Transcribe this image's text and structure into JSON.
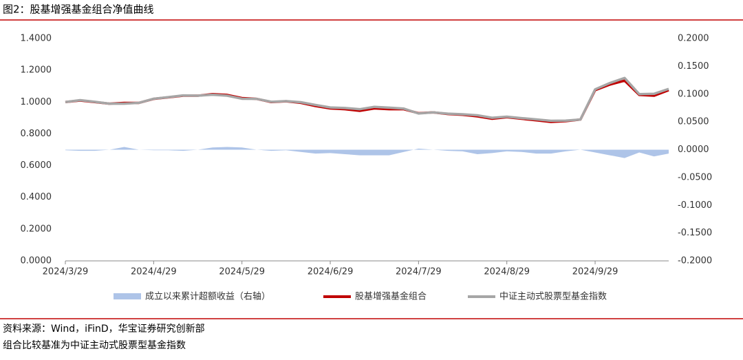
{
  "chart_data": {
    "type": "line",
    "title": "图2：股基增强基金组合净值曲线",
    "categories": [
      "2024/3/29",
      null,
      null,
      null,
      null,
      null,
      "2024/4/29",
      null,
      null,
      null,
      null,
      null,
      "2024/5/29",
      null,
      null,
      null,
      null,
      null,
      "2024/6/29",
      null,
      null,
      null,
      null,
      null,
      "2024/7/29",
      null,
      null,
      null,
      null,
      null,
      "2024/8/29",
      null,
      null,
      null,
      null,
      null,
      "2024/9/29",
      null,
      null,
      null,
      null,
      null
    ],
    "series": [
      {
        "name": "成立以来累计超额收益（右轴）",
        "type": "area",
        "axis": "y2",
        "color": "#aec4e8",
        "values": [
          -0.001,
          -0.002,
          -0.002,
          0.0,
          0.005,
          0.0,
          -0.001,
          -0.001,
          -0.002,
          0.0,
          0.004,
          0.005,
          0.004,
          0.0,
          -0.002,
          -0.001,
          -0.004,
          -0.007,
          -0.006,
          -0.008,
          -0.01,
          -0.01,
          -0.01,
          -0.004,
          0.002,
          0.0,
          -0.002,
          -0.003,
          -0.008,
          -0.006,
          -0.003,
          -0.004,
          -0.007,
          -0.007,
          -0.003,
          0.0,
          -0.005,
          -0.01,
          -0.015,
          -0.005,
          -0.012,
          -0.007
        ]
      },
      {
        "name": "股基增强基金组合",
        "type": "line",
        "color": "#c00000",
        "values": [
          1.0,
          1.01,
          1.0,
          0.99,
          0.995,
          0.995,
          1.02,
          1.03,
          1.04,
          1.04,
          1.05,
          1.045,
          1.025,
          1.02,
          1.0,
          1.005,
          0.995,
          0.975,
          0.96,
          0.955,
          0.945,
          0.96,
          0.955,
          0.955,
          0.93,
          0.935,
          0.925,
          0.92,
          0.91,
          0.895,
          0.905,
          0.895,
          0.885,
          0.875,
          0.88,
          0.89,
          1.075,
          1.11,
          1.135,
          1.045,
          1.04,
          1.075
        ]
      },
      {
        "name": "中证主动式股票型基金指数",
        "type": "line",
        "color": "#a6a6a6",
        "values": [
          1.0,
          1.012,
          1.002,
          0.99,
          0.99,
          0.995,
          1.021,
          1.031,
          1.042,
          1.04,
          1.046,
          1.04,
          1.021,
          1.02,
          1.002,
          1.006,
          0.999,
          0.982,
          0.966,
          0.963,
          0.955,
          0.97,
          0.965,
          0.959,
          0.928,
          0.935,
          0.927,
          0.923,
          0.917,
          0.901,
          0.908,
          0.899,
          0.891,
          0.882,
          0.883,
          0.89,
          1.08,
          1.12,
          1.152,
          1.05,
          1.052,
          1.083
        ]
      }
    ],
    "ylim": [
      0,
      1.4
    ],
    "yticks": [
      {
        "value": 0,
        "label": "0.0000"
      },
      {
        "value": 0.2,
        "label": "0.2000"
      },
      {
        "value": 0.4,
        "label": "0.4000"
      },
      {
        "value": 0.6,
        "label": "0.6000"
      },
      {
        "value": 0.8,
        "label": "0.8000"
      },
      {
        "value": 1.0,
        "label": "1.0000"
      },
      {
        "value": 1.2,
        "label": "1.2000"
      },
      {
        "value": 1.4,
        "label": "1.4000"
      }
    ],
    "y2lim": [
      -0.2,
      0.2
    ],
    "y2ticks": [
      {
        "value": -0.2,
        "label": "-0.2000"
      },
      {
        "value": -0.15,
        "label": "-0.1500"
      },
      {
        "value": -0.1,
        "label": "-0.1000"
      },
      {
        "value": -0.05,
        "label": "-0.0500"
      },
      {
        "value": 0,
        "label": "0.0000"
      },
      {
        "value": 0.05,
        "label": "0.0500"
      },
      {
        "value": 0.1,
        "label": "0.1000"
      },
      {
        "value": 0.15,
        "label": "0.1500"
      },
      {
        "value": 0.2,
        "label": "0.2000"
      }
    ],
    "grid": false,
    "legend": "bottom"
  },
  "source": "资料来源：Wind，iFinD，华宝证券研究创新部",
  "note": "组合比较基准为中证主动式股票型基金指数"
}
